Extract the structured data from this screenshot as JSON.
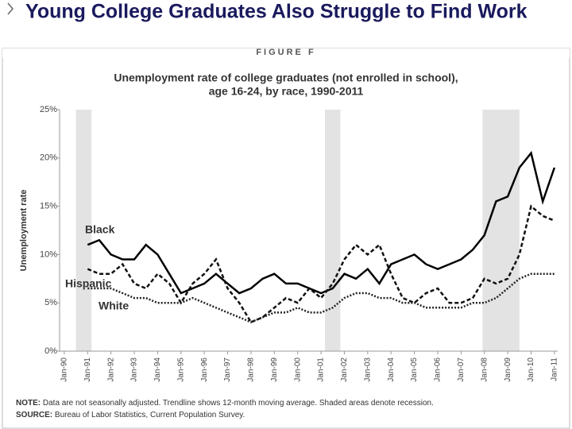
{
  "slide_title": "Young College Graduates Also Struggle to Find Work",
  "figure_label": "FIGURE F",
  "chart_data": {
    "type": "line",
    "title": [
      "Unemployment rate of college graduates (not enrolled in school),",
      "age 16-24, by race, 1990-2011"
    ],
    "y_label": "Unemployment rate",
    "xlim": [
      1989.8,
      2011.14
    ],
    "xticks": [
      {
        "value": 1990,
        "label": "Jan-90"
      },
      {
        "value": 1991,
        "label": "Jan-91"
      },
      {
        "value": 1992,
        "label": "Jan-92"
      },
      {
        "value": 1993,
        "label": "Jan-93"
      },
      {
        "value": 1994,
        "label": "Jan-94"
      },
      {
        "value": 1995,
        "label": "Jan-95"
      },
      {
        "value": 1996,
        "label": "Jan-96"
      },
      {
        "value": 1997,
        "label": "Jan-97"
      },
      {
        "value": 1998,
        "label": "Jan-98"
      },
      {
        "value": 1999,
        "label": "Jan-99"
      },
      {
        "value": 2000,
        "label": "Jan-00"
      },
      {
        "value": 2001,
        "label": "Jan-01"
      },
      {
        "value": 2002,
        "label": "Jan-02"
      },
      {
        "value": 2003,
        "label": "Jan-03"
      },
      {
        "value": 2004,
        "label": "Jan-04"
      },
      {
        "value": 2005,
        "label": "Jan-05"
      },
      {
        "value": 2006,
        "label": "Jan-06"
      },
      {
        "value": 2007,
        "label": "Jan-07"
      },
      {
        "value": 2008,
        "label": "Jan-08"
      },
      {
        "value": 2009,
        "label": "Jan-09"
      },
      {
        "value": 2010,
        "label": "Jan-10"
      },
      {
        "value": 2011,
        "label": "Jan-11"
      }
    ],
    "ylim": [
      0,
      25
    ],
    "yticks": [
      {
        "value": 0,
        "label": "0%"
      },
      {
        "value": 5,
        "label": "5%"
      },
      {
        "value": 10,
        "label": "10%"
      },
      {
        "value": 15,
        "label": "15%"
      },
      {
        "value": 20,
        "label": "20%"
      },
      {
        "value": 25,
        "label": "25%"
      }
    ],
    "recessions": [
      [
        1990.5,
        1991.17
      ],
      [
        2001.17,
        2001.83
      ],
      [
        2007.92,
        2009.5
      ]
    ],
    "recession_color": "#e3e3e3",
    "x": [
      1990,
      1990.5,
      1991,
      1991.5,
      1992,
      1992.5,
      1993,
      1993.5,
      1994,
      1994.5,
      1995,
      1995.5,
      1996,
      1996.5,
      1997,
      1997.5,
      1998,
      1998.5,
      1999,
      1999.5,
      2000,
      2000.5,
      2001,
      2001.5,
      2002,
      2002.5,
      2003,
      2003.5,
      2004,
      2004.5,
      2005,
      2005.5,
      2006,
      2006.5,
      2007,
      2007.5,
      2008,
      2008.5,
      2009,
      2009.5,
      2010,
      2010.5,
      2011
    ],
    "series": [
      {
        "name": "Black",
        "color": "#000000",
        "style": "solid",
        "values": [
          null,
          null,
          11,
          11.5,
          10,
          9.5,
          9.5,
          11,
          10,
          8,
          6,
          6.5,
          7,
          8,
          7,
          6,
          6.5,
          7.5,
          8,
          7,
          7,
          6.5,
          6,
          6.5,
          8,
          7.5,
          8.5,
          7,
          9,
          9.5,
          10,
          9,
          8.5,
          9,
          9.5,
          10.5,
          12,
          15.5,
          16,
          19,
          20.5,
          15.5,
          19
        ]
      },
      {
        "name": "Hispanic",
        "color": "#111111",
        "style": "dashed",
        "values": [
          null,
          null,
          8.5,
          8,
          8,
          9,
          7,
          6.5,
          8,
          7,
          5,
          7,
          8,
          9.5,
          6.5,
          5,
          3,
          3.5,
          4.5,
          5.5,
          5,
          6.5,
          5.5,
          7,
          9.5,
          11,
          10,
          11,
          8,
          5.5,
          5,
          6,
          6.5,
          5,
          5,
          5.5,
          7.5,
          7,
          7.5,
          10,
          15,
          14,
          13.5
        ]
      },
      {
        "name": "White",
        "color": "#222222",
        "style": "dotted",
        "values": [
          null,
          null,
          6.5,
          6.5,
          6.5,
          6,
          5.5,
          5.5,
          5,
          5,
          5,
          5.5,
          5,
          4.5,
          4,
          3.5,
          3,
          3.5,
          4,
          4,
          4.5,
          4,
          4,
          4.5,
          5.5,
          6,
          6,
          5.5,
          5.5,
          5,
          5,
          4.5,
          4.5,
          4.5,
          4.5,
          5,
          5,
          5.5,
          6.5,
          7.5,
          8,
          8,
          8
        ]
      }
    ]
  },
  "note_label": "NOTE:",
  "note": "Data are not seasonally adjusted. Trendline shows 12-month moving average. Shaded areas denote recession.",
  "source_label": "SOURCE:",
  "source": "Bureau of Labor Statistics, Current Population Survey."
}
